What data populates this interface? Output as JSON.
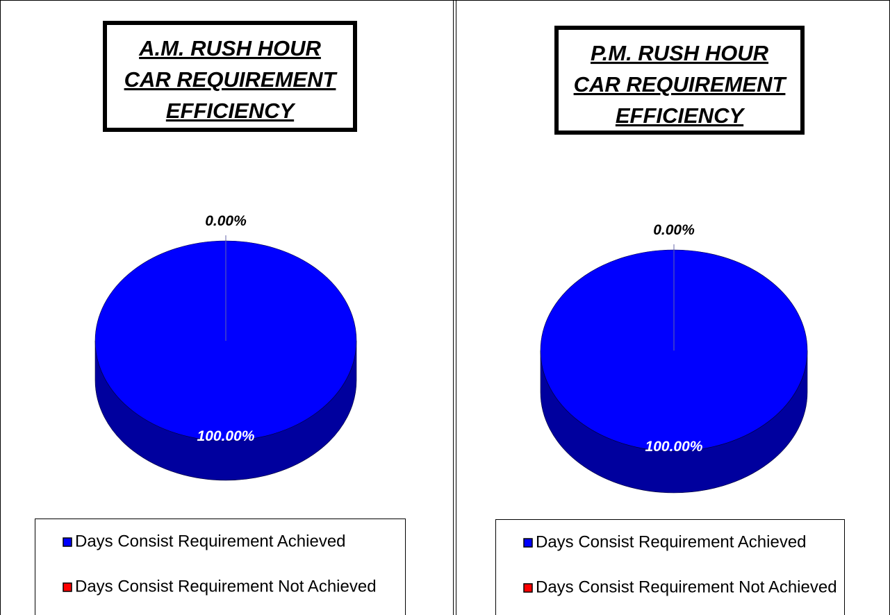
{
  "chart_data": [
    {
      "type": "pie",
      "title": [
        "A.M. RUSH HOUR",
        "CAR REQUIREMENT",
        "EFFICIENCY"
      ],
      "categories": [
        "Days Consist Requirement Achieved",
        "Days Consist Requirement Not Achieved"
      ],
      "values": [
        100,
        0
      ],
      "value_labels": [
        "100.00%",
        "0.00%"
      ],
      "colors": [
        "#0000ff",
        "#ff0000"
      ]
    },
    {
      "type": "pie",
      "title": [
        "P.M. RUSH HOUR",
        "CAR REQUIREMENT",
        "EFFICIENCY"
      ],
      "categories": [
        "Days Consist Requirement Achieved",
        "Days Consist Requirement Not Achieved"
      ],
      "values": [
        100,
        0
      ],
      "value_labels": [
        "100.00%",
        "0.00%"
      ],
      "colors": [
        "#0000ff",
        "#ff0000"
      ]
    }
  ]
}
